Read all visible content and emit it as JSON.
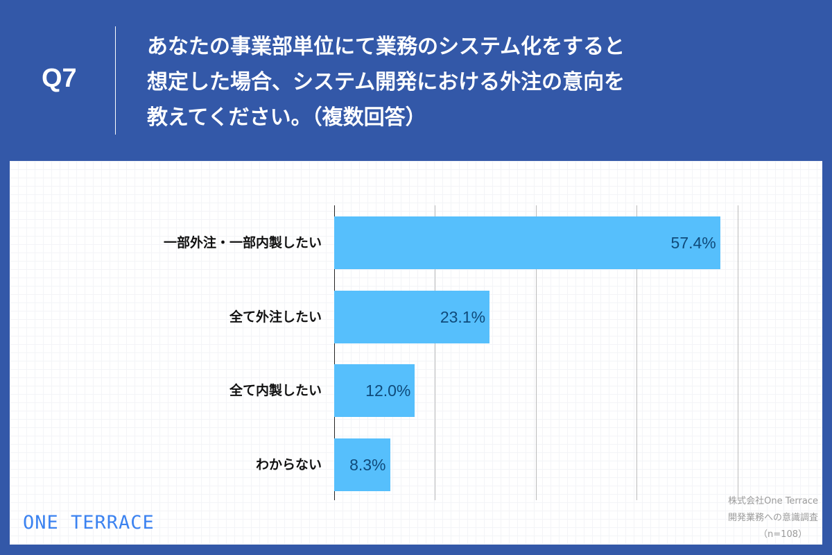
{
  "header": {
    "question_number": "Q7",
    "title_lines": [
      "あなたの事業部単位にて業務のシステム化をすると",
      "想定した場合、システム開発における外注の意向を",
      "教えてください。（複数回答）"
    ]
  },
  "chart_data": {
    "type": "bar",
    "orientation": "horizontal",
    "title": "あなたの事業部単位にて業務のシステム化をすると想定した場合、システム開発における外注の意向を教えてください。（複数回答）",
    "categories": [
      "一部外注・一部内製したい",
      "全て外注したい",
      "全て内製したい",
      "わからない"
    ],
    "values": [
      57.4,
      23.1,
      12.0,
      8.3
    ],
    "value_labels": [
      "57.4%",
      "23.1%",
      "12.0%",
      "8.3%"
    ],
    "xlabel": "",
    "ylabel": "",
    "xlim": [
      0,
      60
    ],
    "grid": true,
    "gridline_step": 15,
    "legend": null,
    "bar_color": "#56bffc"
  },
  "source": {
    "lines": [
      "株式会社One Terrace",
      "開発業務への意識調査",
      "（n=108）"
    ]
  },
  "brand": {
    "logo_text": "ONE TERRACE",
    "color": "#3b82f0"
  },
  "colors": {
    "background": "#3358a8",
    "bar": "#56bffc",
    "value_text": "#0f4a7a"
  }
}
